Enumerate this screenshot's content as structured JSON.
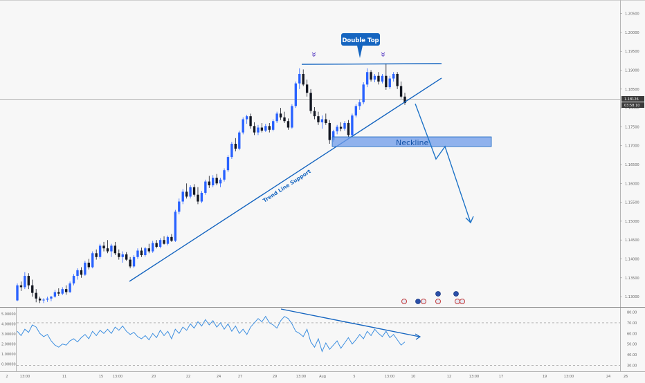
{
  "colors": {
    "background": "#f7f7f7",
    "candle_up": "#2962ff",
    "candle_down": "#131722",
    "drawing": "#1565c0",
    "neckline_fill": "#6e9bea",
    "oscillator": "#3d8fe0",
    "label_bg": "#1565c0",
    "grid": "#e6e6e6"
  },
  "annotations": {
    "double_top": "Double Top",
    "neckline": "Neckline",
    "trend_line": "Trend Line Support"
  },
  "price_panel": {
    "last_price": "1.18126",
    "countdown": "03:58:10"
  },
  "chart_data": [
    {
      "type": "candlestick",
      "title": "",
      "x_ticks": [
        "2",
        "13:00",
        "11",
        "15",
        "13:00",
        "20",
        "22",
        "24",
        "27",
        "29",
        "13:00",
        "Aug",
        "5",
        "13:00",
        "10",
        "12",
        "13:00",
        "17",
        "19",
        "13:00",
        "24",
        "26"
      ],
      "y_ticks": [
        "1.20500",
        "1.20000",
        "1.19500",
        "1.19000",
        "1.18500",
        "1.18000",
        "1.17500",
        "1.17000",
        "1.16500",
        "1.16000",
        "1.15500",
        "1.15000",
        "1.14500",
        "1.14000",
        "1.13500",
        "1.13000"
      ],
      "ylim": [
        1.128,
        1.2075
      ],
      "grid": false,
      "ohlc": [
        [
          1.129,
          1.1335,
          1.1288,
          1.133
        ],
        [
          1.133,
          1.134,
          1.1315,
          1.1325
        ],
        [
          1.1325,
          1.1365,
          1.132,
          1.1355
        ],
        [
          1.1355,
          1.1362,
          1.132,
          1.133
        ],
        [
          1.133,
          1.1345,
          1.13,
          1.131
        ],
        [
          1.131,
          1.132,
          1.1285,
          1.1295
        ],
        [
          1.1295,
          1.13,
          1.1283,
          1.129
        ],
        [
          1.129,
          1.1296,
          1.1283,
          1.1292
        ],
        [
          1.1292,
          1.13,
          1.1286,
          1.1295
        ],
        [
          1.1295,
          1.1302,
          1.1288,
          1.13
        ],
        [
          1.13,
          1.1318,
          1.1297,
          1.1312
        ],
        [
          1.1312,
          1.1322,
          1.1302,
          1.1308
        ],
        [
          1.1308,
          1.1325,
          1.1304,
          1.132
        ],
        [
          1.132,
          1.133,
          1.1305,
          1.1312
        ],
        [
          1.1312,
          1.134,
          1.131,
          1.1335
        ],
        [
          1.1335,
          1.136,
          1.133,
          1.1355
        ],
        [
          1.1355,
          1.1375,
          1.1345,
          1.137
        ],
        [
          1.137,
          1.1378,
          1.135,
          1.1358
        ],
        [
          1.1358,
          1.1395,
          1.1355,
          1.139
        ],
        [
          1.139,
          1.14,
          1.1372,
          1.1378
        ],
        [
          1.1378,
          1.142,
          1.1375,
          1.1415
        ],
        [
          1.1415,
          1.1425,
          1.1398,
          1.1405
        ],
        [
          1.1405,
          1.144,
          1.14,
          1.1435
        ],
        [
          1.1435,
          1.1445,
          1.142,
          1.1428
        ],
        [
          1.1428,
          1.145,
          1.1415,
          1.142
        ],
        [
          1.142,
          1.144,
          1.1405,
          1.1435
        ],
        [
          1.1435,
          1.1445,
          1.141,
          1.1415
        ],
        [
          1.1415,
          1.1425,
          1.1398,
          1.1405
        ],
        [
          1.1405,
          1.142,
          1.139,
          1.1412
        ],
        [
          1.1412,
          1.1418,
          1.1395,
          1.1398
        ],
        [
          1.1398,
          1.1405,
          1.1375,
          1.138
        ],
        [
          1.138,
          1.141,
          1.1376,
          1.1405
        ],
        [
          1.1405,
          1.1428,
          1.14,
          1.1422
        ],
        [
          1.1422,
          1.143,
          1.1405,
          1.141
        ],
        [
          1.141,
          1.1432,
          1.1406,
          1.1428
        ],
        [
          1.1428,
          1.144,
          1.1415,
          1.142
        ],
        [
          1.142,
          1.1448,
          1.1416,
          1.1442
        ],
        [
          1.1442,
          1.145,
          1.1428,
          1.1432
        ],
        [
          1.1432,
          1.1455,
          1.1428,
          1.145
        ],
        [
          1.145,
          1.146,
          1.1438,
          1.144
        ],
        [
          1.144,
          1.1462,
          1.1436,
          1.1458
        ],
        [
          1.1458,
          1.1466,
          1.1445,
          1.1448
        ],
        [
          1.1448,
          1.153,
          1.1445,
          1.1525
        ],
        [
          1.1525,
          1.156,
          1.1518,
          1.1552
        ],
        [
          1.1552,
          1.1585,
          1.1545,
          1.1578
        ],
        [
          1.1578,
          1.16,
          1.156,
          1.1565
        ],
        [
          1.1565,
          1.1595,
          1.156,
          1.159
        ],
        [
          1.159,
          1.1598,
          1.1565,
          1.157
        ],
        [
          1.157,
          1.159,
          1.1545,
          1.1552
        ],
        [
          1.1552,
          1.158,
          1.1548,
          1.1575
        ],
        [
          1.1575,
          1.161,
          1.157,
          1.1605
        ],
        [
          1.1605,
          1.162,
          1.1588,
          1.1595
        ],
        [
          1.1595,
          1.1622,
          1.159,
          1.1615
        ],
        [
          1.1615,
          1.1625,
          1.1595,
          1.16
        ],
        [
          1.16,
          1.1615,
          1.159,
          1.161
        ],
        [
          1.161,
          1.164,
          1.1605,
          1.1635
        ],
        [
          1.1635,
          1.1675,
          1.163,
          1.167
        ],
        [
          1.167,
          1.171,
          1.1665,
          1.1705
        ],
        [
          1.1705,
          1.172,
          1.1685,
          1.1692
        ],
        [
          1.1692,
          1.174,
          1.1688,
          1.1735
        ],
        [
          1.1735,
          1.1775,
          1.173,
          1.177
        ],
        [
          1.177,
          1.1782,
          1.1758,
          1.1778
        ],
        [
          1.1778,
          1.1785,
          1.1745,
          1.1752
        ],
        [
          1.1752,
          1.1762,
          1.1728,
          1.1735
        ],
        [
          1.1735,
          1.1755,
          1.1728,
          1.1748
        ],
        [
          1.1748,
          1.176,
          1.1735,
          1.174
        ],
        [
          1.174,
          1.1758,
          1.1736,
          1.1752
        ],
        [
          1.1752,
          1.176,
          1.1735,
          1.1742
        ],
        [
          1.1742,
          1.177,
          1.1738,
          1.1765
        ],
        [
          1.1765,
          1.179,
          1.176,
          1.1785
        ],
        [
          1.1785,
          1.18,
          1.1768,
          1.1775
        ],
        [
          1.1775,
          1.179,
          1.176,
          1.1765
        ],
        [
          1.1765,
          1.1772,
          1.1742,
          1.1748
        ],
        [
          1.1748,
          1.181,
          1.1745,
          1.1805
        ],
        [
          1.1805,
          1.187,
          1.18,
          1.1865
        ],
        [
          1.1865,
          1.1905,
          1.185,
          1.189
        ],
        [
          1.189,
          1.1902,
          1.1858,
          1.1862
        ],
        [
          1.1862,
          1.1875,
          1.183,
          1.184
        ],
        [
          1.184,
          1.185,
          1.1785,
          1.1792
        ],
        [
          1.1792,
          1.1802,
          1.177,
          1.1778
        ],
        [
          1.1778,
          1.179,
          1.1755,
          1.1762
        ],
        [
          1.1762,
          1.178,
          1.1745,
          1.177
        ],
        [
          1.177,
          1.1785,
          1.1755,
          1.176
        ],
        [
          1.176,
          1.1768,
          1.1705,
          1.1715
        ],
        [
          1.1715,
          1.1742,
          1.171,
          1.1738
        ],
        [
          1.1738,
          1.1755,
          1.173,
          1.175
        ],
        [
          1.175,
          1.1762,
          1.1738,
          1.1745
        ],
        [
          1.1745,
          1.1765,
          1.174,
          1.176
        ],
        [
          1.176,
          1.1768,
          1.1722,
          1.1728
        ],
        [
          1.1728,
          1.1785,
          1.1725,
          1.178
        ],
        [
          1.178,
          1.181,
          1.1775,
          1.1805
        ],
        [
          1.1805,
          1.1822,
          1.1795,
          1.1815
        ],
        [
          1.1815,
          1.1868,
          1.181,
          1.1862
        ],
        [
          1.1862,
          1.1905,
          1.1855,
          1.1895
        ],
        [
          1.1895,
          1.19,
          1.187,
          1.1875
        ],
        [
          1.1875,
          1.189,
          1.1868,
          1.1885
        ],
        [
          1.1885,
          1.1895,
          1.1862,
          1.187
        ],
        [
          1.187,
          1.189,
          1.1865,
          1.1885
        ],
        [
          1.1885,
          1.1918,
          1.1848,
          1.1855
        ],
        [
          1.1855,
          1.1885,
          1.185,
          1.1878
        ],
        [
          1.1878,
          1.1895,
          1.187,
          1.189
        ],
        [
          1.189,
          1.1895,
          1.185,
          1.1858
        ],
        [
          1.1858,
          1.187,
          1.1825,
          1.183
        ],
        [
          1.183,
          1.184,
          1.1808,
          1.1813
        ]
      ]
    },
    {
      "type": "line",
      "title": "",
      "y_ticks": [
        "5.00000",
        "4.00000",
        "3.00000",
        "2.00000",
        "1.00000",
        "0.00000"
      ],
      "y_ticks_right": [
        "80.00",
        "70.00",
        "60.00",
        "50.00",
        "40.00",
        "30.00"
      ],
      "ylim": [
        25,
        83
      ],
      "levels": [
        70,
        30
      ],
      "values": [
        62,
        58,
        64,
        61,
        68,
        66,
        60,
        57,
        59,
        53,
        49,
        47,
        50,
        49,
        53,
        55,
        52,
        56,
        59,
        55,
        62,
        58,
        63,
        60,
        64,
        60,
        66,
        63,
        67,
        62,
        59,
        61,
        57,
        55,
        58,
        54,
        60,
        56,
        63,
        58,
        62,
        55,
        64,
        60,
        66,
        63,
        69,
        65,
        71,
        67,
        73,
        68,
        72,
        66,
        70,
        64,
        69,
        62,
        67,
        60,
        64,
        59,
        66,
        70,
        74,
        71,
        76,
        70,
        68,
        65,
        72,
        76,
        74,
        69,
        62,
        60,
        57,
        64,
        52,
        47,
        55,
        43,
        51,
        45,
        49,
        53,
        46,
        51,
        56,
        50,
        54,
        59,
        55,
        62,
        58,
        64,
        60,
        57,
        62,
        56,
        59,
        54,
        49,
        52
      ]
    }
  ]
}
